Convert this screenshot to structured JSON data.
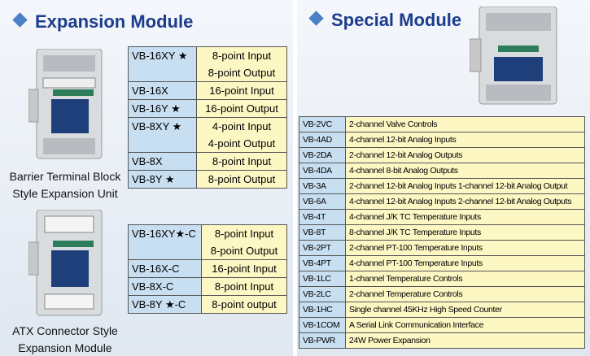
{
  "expansion": {
    "title": "Expansion Module",
    "groups": [
      {
        "caption": [
          "Barrier Terminal Block",
          "Style Expansion Unit"
        ],
        "rows": [
          {
            "model": "VB-16XY ★",
            "desc": [
              "8-point Input",
              "8-point Output"
            ]
          },
          {
            "model": "VB-16X",
            "desc": [
              "16-point Input"
            ]
          },
          {
            "model": "VB-16Y ★",
            "desc": [
              "16-point Output"
            ]
          },
          {
            "model": "VB-8XY ★",
            "desc": [
              "4-point Input",
              "4-point Output"
            ]
          },
          {
            "model": "VB-8X",
            "desc": [
              "8-point Input"
            ]
          },
          {
            "model": "VB-8Y ★",
            "desc": [
              "8-point Output"
            ]
          }
        ]
      },
      {
        "caption": [
          "ATX Connector Style",
          "Expansion Module"
        ],
        "rows": [
          {
            "model": "VB-16XY★-C",
            "desc": [
              "8-point Input",
              "8-point Output"
            ]
          },
          {
            "model": "VB-16X-C",
            "desc": [
              "16-point Input"
            ]
          },
          {
            "model": "VB-8X-C",
            "desc": [
              "8-point Input"
            ]
          },
          {
            "model": "VB-8Y ★-C",
            "desc": [
              "8-point output"
            ]
          }
        ]
      }
    ]
  },
  "special": {
    "title": "Special Module",
    "rows": [
      [
        "VB-2VC",
        "2-channel Valve Controls"
      ],
      [
        "VB-4AD",
        "4-channel 12-bit Analog Inputs"
      ],
      [
        "VB-2DA",
        "2-channel 12-bit Analog Outputs"
      ],
      [
        "VB-4DA",
        "4-channel 8-bit Analog Outputs"
      ],
      [
        "VB-3A",
        "2-channel 12-bit Analog Inputs  1-channel 12-bit Analog Output"
      ],
      [
        "VB-6A",
        "4-channel 12-bit Analog Inputs  2-channel 12-bit Analog Outputs"
      ],
      [
        "VB-4T",
        "4-channel J/K TC Temperature Inputs"
      ],
      [
        "VB-8T",
        "8-channel J/K TC Temperature Inputs"
      ],
      [
        "VB-2PT",
        "2-channel  PT-100 Temperature Inputs"
      ],
      [
        "VB-4PT",
        "4-channel PT-100 Temperature Inputs"
      ],
      [
        "VB-1LC",
        "1-channel Temperature Controls"
      ],
      [
        "VB-2LC",
        "2-channel Temperature Controls"
      ],
      [
        "VB-1HC",
        "Single channel 45KHz High Speed Counter"
      ],
      [
        "VB-1COM",
        "A Serial Link Communication Interface"
      ],
      [
        "VB-PWR",
        "24W Power Expansion"
      ]
    ]
  }
}
